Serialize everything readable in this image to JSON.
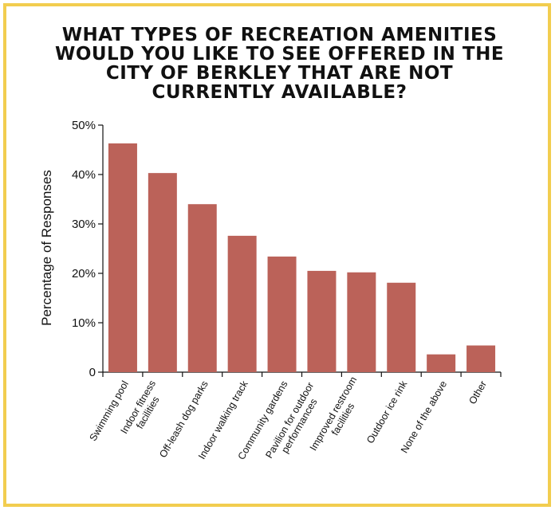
{
  "title_lines": [
    "What types of recreation amenities",
    "would you like to see offered in the",
    "City of Berkley that are not",
    "currently available?"
  ],
  "colors": {
    "bar": "#bb6259",
    "frame": "#f2cd4f",
    "axis": "#111111"
  },
  "chart_data": {
    "type": "bar",
    "title": "What types of recreation amenities would you like to see offered in the City of Berkley that are not currently available?",
    "xlabel": "",
    "ylabel": "Percentage of Responses",
    "ylim": [
      0,
      50
    ],
    "yticks": [
      0,
      10,
      20,
      30,
      40,
      50
    ],
    "ytick_labels": [
      "0",
      "10%",
      "20%",
      "30%",
      "40%",
      "50%"
    ],
    "grid": false,
    "categories": [
      [
        "Swimming pool"
      ],
      [
        "Indoor fitness",
        "facilities"
      ],
      [
        "Off-leash dog parks"
      ],
      [
        "Indoor walking track"
      ],
      [
        "Community gardens"
      ],
      [
        "Pavilion for outdoor",
        "performances"
      ],
      [
        "Improved restroom",
        "facilities"
      ],
      [
        "Outdoor ice rink"
      ],
      [
        "None of the above"
      ],
      [
        "Other"
      ]
    ],
    "values": [
      46.3,
      40.3,
      34.0,
      27.6,
      23.4,
      20.5,
      20.2,
      18.1,
      3.6,
      5.4
    ]
  }
}
